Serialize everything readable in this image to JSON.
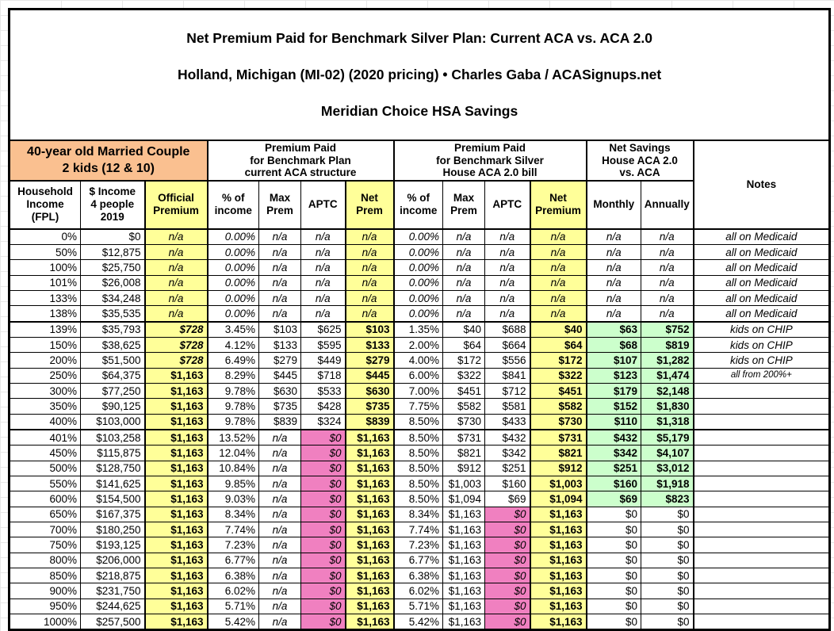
{
  "title": {
    "line1": "Net Premium Paid for Benchmark Silver Plan: Current ACA vs. ACA 2.0",
    "line2": "Holland, Michigan (MI-02) (2020 pricing) • Charles Gaba / ACASignups.net",
    "line3": "Meridian Choice HSA Savings"
  },
  "group_headers": {
    "demographic": "40-year old Married Couple\n2 kids (12 & 10)",
    "current_aca": "Premium Paid\nfor Benchmark Plan\ncurrent ACA structure",
    "aca_2_0": "Premium Paid\nfor Benchmark Silver\nHouse ACA 2.0 bill",
    "net_savings": "Net Savings\nHouse ACA 2.0\nvs. ACA",
    "notes": "Notes"
  },
  "column_headers": [
    "Household\nIncome\n(FPL)",
    "$ Income\n4 people\n2019",
    "Official\nPremium",
    "% of\nincome",
    "Max\nPrem",
    "APTC",
    "Net\nPrem",
    "% of\nincome",
    "Max\nPrem",
    "APTC",
    "Net\nPremium",
    "Monthly",
    "Annually"
  ],
  "colors": {
    "demographic_header": "#FAC090",
    "premium_highlight": "#FFFF99",
    "zero_aptc_highlight": "#F080C0",
    "savings_highlight": "#CCFFCC",
    "grid_border": "#000000"
  },
  "rows": [
    {
      "type": "medicaid",
      "cells": [
        "0%",
        "$0",
        "n/a",
        "0.00%",
        "n/a",
        "n/a",
        "n/a",
        "0.00%",
        "n/a",
        "n/a",
        "n/a",
        "n/a",
        "n/a",
        "all on Medicaid"
      ]
    },
    {
      "type": "medicaid",
      "cells": [
        "50%",
        "$12,875",
        "n/a",
        "0.00%",
        "n/a",
        "n/a",
        "n/a",
        "0.00%",
        "n/a",
        "n/a",
        "n/a",
        "n/a",
        "n/a",
        "all on Medicaid"
      ]
    },
    {
      "type": "medicaid",
      "cells": [
        "100%",
        "$25,750",
        "n/a",
        "0.00%",
        "n/a",
        "n/a",
        "n/a",
        "0.00%",
        "n/a",
        "n/a",
        "n/a",
        "n/a",
        "n/a",
        "all on Medicaid"
      ]
    },
    {
      "type": "medicaid",
      "cells": [
        "101%",
        "$26,008",
        "n/a",
        "0.00%",
        "n/a",
        "n/a",
        "n/a",
        "0.00%",
        "n/a",
        "n/a",
        "n/a",
        "n/a",
        "n/a",
        "all on Medicaid"
      ]
    },
    {
      "type": "medicaid",
      "cells": [
        "133%",
        "$34,248",
        "n/a",
        "0.00%",
        "n/a",
        "n/a",
        "n/a",
        "0.00%",
        "n/a",
        "n/a",
        "n/a",
        "n/a",
        "n/a",
        "all on Medicaid"
      ]
    },
    {
      "type": "medicaid",
      "cells": [
        "138%",
        "$35,535",
        "n/a",
        "0.00%",
        "n/a",
        "n/a",
        "n/a",
        "0.00%",
        "n/a",
        "n/a",
        "n/a",
        "n/a",
        "n/a",
        "all on Medicaid"
      ]
    },
    {
      "type": "chip",
      "divider": true,
      "cells": [
        "139%",
        "$35,793",
        "$728",
        "3.45%",
        "$103",
        "$625",
        "$103",
        "1.35%",
        "$40",
        "$688",
        "$40",
        "$63",
        "$752",
        "kids on CHIP"
      ]
    },
    {
      "type": "chip",
      "cells": [
        "150%",
        "$38,625",
        "$728",
        "4.12%",
        "$133",
        "$595",
        "$133",
        "2.00%",
        "$64",
        "$664",
        "$64",
        "$68",
        "$819",
        "kids on CHIP"
      ]
    },
    {
      "type": "chip",
      "cells": [
        "200%",
        "$51,500",
        "$728",
        "6.49%",
        "$279",
        "$449",
        "$279",
        "4.00%",
        "$172",
        "$556",
        "$172",
        "$107",
        "$1,282",
        "kids on CHIP"
      ]
    },
    {
      "type": "mid",
      "note_small": true,
      "cells": [
        "250%",
        "$64,375",
        "$1,163",
        "8.29%",
        "$445",
        "$718",
        "$445",
        "6.00%",
        "$322",
        "$841",
        "$322",
        "$123",
        "$1,474",
        "all from 200%+"
      ]
    },
    {
      "type": "mid",
      "cells": [
        "300%",
        "$77,250",
        "$1,163",
        "9.78%",
        "$630",
        "$533",
        "$630",
        "7.00%",
        "$451",
        "$712",
        "$451",
        "$179",
        "$2,148",
        ""
      ]
    },
    {
      "type": "mid",
      "cells": [
        "350%",
        "$90,125",
        "$1,163",
        "9.78%",
        "$735",
        "$428",
        "$735",
        "7.75%",
        "$582",
        "$581",
        "$582",
        "$152",
        "$1,830",
        ""
      ]
    },
    {
      "type": "mid",
      "cells": [
        "400%",
        "$103,000",
        "$1,163",
        "9.78%",
        "$839",
        "$324",
        "$839",
        "8.50%",
        "$730",
        "$433",
        "$730",
        "$110",
        "$1,318",
        ""
      ]
    },
    {
      "type": "cliff",
      "divider": true,
      "cells": [
        "401%",
        "$103,258",
        "$1,163",
        "13.52%",
        "n/a",
        "$0",
        "$1,163",
        "8.50%",
        "$731",
        "$432",
        "$731",
        "$432",
        "$5,179",
        ""
      ]
    },
    {
      "type": "cliff",
      "cells": [
        "450%",
        "$115,875",
        "$1,163",
        "12.04%",
        "n/a",
        "$0",
        "$1,163",
        "8.50%",
        "$821",
        "$342",
        "$821",
        "$342",
        "$4,107",
        ""
      ]
    },
    {
      "type": "cliff",
      "cells": [
        "500%",
        "$128,750",
        "$1,163",
        "10.84%",
        "n/a",
        "$0",
        "$1,163",
        "8.50%",
        "$912",
        "$251",
        "$912",
        "$251",
        "$3,012",
        ""
      ]
    },
    {
      "type": "cliff",
      "cells": [
        "550%",
        "$141,625",
        "$1,163",
        "9.85%",
        "n/a",
        "$0",
        "$1,163",
        "8.50%",
        "$1,003",
        "$160",
        "$1,003",
        "$160",
        "$1,918",
        ""
      ]
    },
    {
      "type": "cliff",
      "cells": [
        "600%",
        "$154,500",
        "$1,163",
        "9.03%",
        "n/a",
        "$0",
        "$1,163",
        "8.50%",
        "$1,094",
        "$69",
        "$1,094",
        "$69",
        "$823",
        ""
      ]
    },
    {
      "type": "flat",
      "cells": [
        "650%",
        "$167,375",
        "$1,163",
        "8.34%",
        "n/a",
        "$0",
        "$1,163",
        "8.34%",
        "$1,163",
        "$0",
        "$1,163",
        "$0",
        "$0",
        ""
      ]
    },
    {
      "type": "flat",
      "cells": [
        "700%",
        "$180,250",
        "$1,163",
        "7.74%",
        "n/a",
        "$0",
        "$1,163",
        "7.74%",
        "$1,163",
        "$0",
        "$1,163",
        "$0",
        "$0",
        ""
      ]
    },
    {
      "type": "flat",
      "cells": [
        "750%",
        "$193,125",
        "$1,163",
        "7.23%",
        "n/a",
        "$0",
        "$1,163",
        "7.23%",
        "$1,163",
        "$0",
        "$1,163",
        "$0",
        "$0",
        ""
      ]
    },
    {
      "type": "flat",
      "cells": [
        "800%",
        "$206,000",
        "$1,163",
        "6.77%",
        "n/a",
        "$0",
        "$1,163",
        "6.77%",
        "$1,163",
        "$0",
        "$1,163",
        "$0",
        "$0",
        ""
      ]
    },
    {
      "type": "flat",
      "cells": [
        "850%",
        "$218,875",
        "$1,163",
        "6.38%",
        "n/a",
        "$0",
        "$1,163",
        "6.38%",
        "$1,163",
        "$0",
        "$1,163",
        "$0",
        "$0",
        ""
      ]
    },
    {
      "type": "flat",
      "cells": [
        "900%",
        "$231,750",
        "$1,163",
        "6.02%",
        "n/a",
        "$0",
        "$1,163",
        "6.02%",
        "$1,163",
        "$0",
        "$1,163",
        "$0",
        "$0",
        ""
      ]
    },
    {
      "type": "flat",
      "cells": [
        "950%",
        "$244,625",
        "$1,163",
        "5.71%",
        "n/a",
        "$0",
        "$1,163",
        "5.71%",
        "$1,163",
        "$0",
        "$1,163",
        "$0",
        "$0",
        ""
      ]
    },
    {
      "type": "flat",
      "cells": [
        "1000%",
        "$257,500",
        "$1,163",
        "5.42%",
        "n/a",
        "$0",
        "$1,163",
        "5.42%",
        "$1,163",
        "$0",
        "$1,163",
        "$0",
        "$0",
        ""
      ]
    }
  ]
}
